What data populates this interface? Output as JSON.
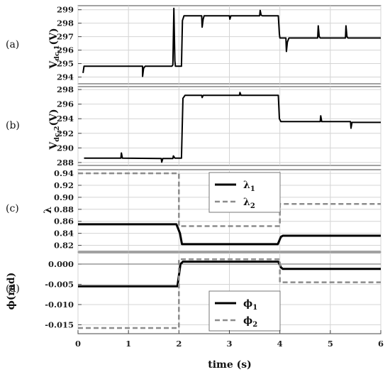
{
  "x_axis": {
    "label": "time (s)",
    "range": [
      0,
      6
    ],
    "ticks": [
      "0",
      "1",
      "2",
      "3",
      "4",
      "5",
      "6"
    ]
  },
  "chart_data": [
    {
      "type": "line",
      "panel_label": "(a)",
      "ylabel": "V_dc,1 (V)",
      "ylabel_main": "V",
      "ylabel_sub": "dc,1",
      "ylabel_unit": "(V)",
      "ylim": [
        293.5,
        299.3
      ],
      "yticks": [
        294,
        295,
        296,
        297,
        298,
        299
      ],
      "grid": true,
      "series": [
        {
          "color": "#000000",
          "dash": "",
          "width": 2,
          "points": [
            [
              0.1,
              294.3
            ],
            [
              0.12,
              294.8
            ],
            [
              1.28,
              294.8
            ],
            [
              1.28,
              294.05
            ],
            [
              1.3,
              294.65
            ],
            [
              1.33,
              294.8
            ],
            [
              1.86,
              294.8
            ],
            [
              1.88,
              294.9
            ],
            [
              1.9,
              299.1
            ],
            [
              1.92,
              295.2
            ],
            [
              1.93,
              294.8
            ],
            [
              2.05,
              294.8
            ],
            [
              2.07,
              298.2
            ],
            [
              2.1,
              298.55
            ],
            [
              2.45,
              298.55
            ],
            [
              2.46,
              297.7
            ],
            [
              2.48,
              298.3
            ],
            [
              2.5,
              298.55
            ],
            [
              3.0,
              298.55
            ],
            [
              3.01,
              298.3
            ],
            [
              3.03,
              298.55
            ],
            [
              3.6,
              298.55
            ],
            [
              3.61,
              298.95
            ],
            [
              3.63,
              298.6
            ],
            [
              3.65,
              298.55
            ],
            [
              3.97,
              298.55
            ],
            [
              3.99,
              297.2
            ],
            [
              4.0,
              296.9
            ],
            [
              4.12,
              296.9
            ],
            [
              4.13,
              295.9
            ],
            [
              4.15,
              296.6
            ],
            [
              4.18,
              296.9
            ],
            [
              4.75,
              296.9
            ],
            [
              4.76,
              297.8
            ],
            [
              4.78,
              297.0
            ],
            [
              4.8,
              296.9
            ],
            [
              5.3,
              296.9
            ],
            [
              5.31,
              297.8
            ],
            [
              5.33,
              297.0
            ],
            [
              5.35,
              296.9
            ],
            [
              6.0,
              296.9
            ]
          ]
        }
      ]
    },
    {
      "type": "line",
      "panel_label": "(b)",
      "ylabel": "V_dc,2 (V)",
      "ylabel_main": "V",
      "ylabel_sub": "dc,2",
      "ylabel_unit": "(V)",
      "ylim": [
        287.6,
        298.4
      ],
      "yticks": [
        288,
        290,
        292,
        294,
        296,
        298
      ],
      "grid": true,
      "series": [
        {
          "color": "#000000",
          "dash": "",
          "width": 2,
          "points": [
            [
              0.12,
              288.6
            ],
            [
              0.85,
              288.6
            ],
            [
              0.86,
              289.3
            ],
            [
              0.88,
              288.6
            ],
            [
              1.65,
              288.55
            ],
            [
              1.66,
              288.05
            ],
            [
              1.68,
              288.55
            ],
            [
              1.88,
              288.55
            ],
            [
              1.89,
              288.9
            ],
            [
              1.92,
              288.6
            ],
            [
              2.05,
              288.6
            ],
            [
              2.08,
              296.8
            ],
            [
              2.12,
              297.2
            ],
            [
              2.45,
              297.2
            ],
            [
              2.46,
              296.9
            ],
            [
              2.48,
              297.2
            ],
            [
              3.2,
              297.2
            ],
            [
              3.21,
              297.6
            ],
            [
              3.23,
              297.2
            ],
            [
              3.97,
              297.2
            ],
            [
              3.99,
              294.0
            ],
            [
              4.02,
              293.6
            ],
            [
              4.8,
              293.6
            ],
            [
              4.81,
              294.4
            ],
            [
              4.83,
              293.6
            ],
            [
              5.4,
              293.6
            ],
            [
              5.41,
              292.7
            ],
            [
              5.43,
              293.5
            ],
            [
              6.0,
              293.5
            ]
          ]
        }
      ]
    },
    {
      "type": "line",
      "panel_label": "(c)",
      "ylabel": "λ",
      "ylim": [
        0.81,
        0.946
      ],
      "yticks": [
        0.82,
        0.84,
        0.86,
        0.88,
        0.9,
        0.92,
        0.94
      ],
      "ytick_labels": [
        "0.82",
        "0.84",
        "0.86",
        "0.88",
        "0.90",
        "0.92",
        "0.94"
      ],
      "grid": true,
      "legend": {
        "placement": "top-center",
        "entries": [
          {
            "main": "λ",
            "sub": "1"
          },
          {
            "main": "λ",
            "sub": "2"
          }
        ]
      },
      "series": [
        {
          "legend_index": 0,
          "color": "#000000",
          "dash": "",
          "width": 3,
          "points": [
            [
              0,
              0.855
            ],
            [
              1.95,
              0.855
            ],
            [
              2.02,
              0.84
            ],
            [
              2.06,
              0.822
            ],
            [
              3.96,
              0.822
            ],
            [
              4.02,
              0.834
            ],
            [
              4.06,
              0.836
            ],
            [
              6.0,
              0.836
            ]
          ]
        },
        {
          "legend_index": 1,
          "color": "#8c8c8c",
          "dash": "7,4",
          "width": 2.5,
          "points": [
            [
              0,
              0.94
            ],
            [
              2.0,
              0.94
            ],
            [
              2.0,
              0.852
            ],
            [
              4.0,
              0.852
            ],
            [
              4.0,
              0.889
            ],
            [
              6.0,
              0.889
            ]
          ]
        }
      ]
    },
    {
      "type": "line",
      "panel_label": "(d)",
      "ylabel": "ϕ(rad)",
      "ylim": [
        -0.0172,
        0.0028
      ],
      "yticks": [
        -0.015,
        -0.01,
        -0.005,
        0.0
      ],
      "ytick_labels": [
        "-0.015",
        "-0.010",
        "-0.005",
        "0.000"
      ],
      "grid": true,
      "zero_line": true,
      "legend": {
        "placement": "bottom-center",
        "entries": [
          {
            "main": "ϕ",
            "sub": "1"
          },
          {
            "main": "ϕ",
            "sub": "2"
          }
        ]
      },
      "series": [
        {
          "legend_index": 0,
          "color": "#000000",
          "dash": "",
          "width": 3,
          "points": [
            [
              0,
              -0.0055
            ],
            [
              1.97,
              -0.0055
            ],
            [
              2.03,
              0.0
            ],
            [
              2.08,
              0.0006
            ],
            [
              3.97,
              0.0006
            ],
            [
              4.02,
              -0.0008
            ],
            [
              4.06,
              -0.0012
            ],
            [
              6.0,
              -0.0012
            ]
          ]
        },
        {
          "legend_index": 1,
          "color": "#8c8c8c",
          "dash": "7,4",
          "width": 2.5,
          "points": [
            [
              0,
              -0.0158
            ],
            [
              2.0,
              -0.0158
            ],
            [
              2.0,
              0.0012
            ],
            [
              4.0,
              0.0012
            ],
            [
              4.0,
              -0.0045
            ],
            [
              6.0,
              -0.0045
            ]
          ]
        }
      ]
    }
  ]
}
